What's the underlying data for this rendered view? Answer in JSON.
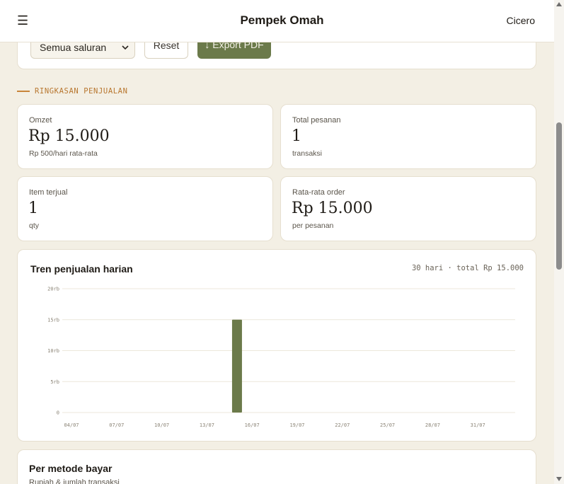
{
  "header": {
    "app_title": "Pempek Omah",
    "user_name": "Cicero",
    "menu_glyph": "☰"
  },
  "filters": {
    "channel_selected": "Semua saluran",
    "reset_label": "Reset",
    "export_label": "↓ Export PDF"
  },
  "summary": {
    "section_label": "RINGKASAN PENJUALAN",
    "stats": [
      {
        "label": "Omzet",
        "value": "Rp 15.000",
        "sub": "Rp 500/hari rata-rata"
      },
      {
        "label": "Total pesanan",
        "value": "1",
        "sub": "transaksi"
      },
      {
        "label": "Item terjual",
        "value": "1",
        "sub": "qty"
      },
      {
        "label": "Rata-rata order",
        "value": "Rp 15.000",
        "sub": "per pesanan"
      }
    ]
  },
  "trend": {
    "title": "Tren penjualan harian",
    "meta": "30 hari · total Rp 15.000"
  },
  "chart_data": {
    "type": "bar",
    "title": "Tren penjualan harian",
    "y_ticks": [
      "0",
      "5rb",
      "10rb",
      "15rb",
      "20rb"
    ],
    "ylim": [
      0,
      20000
    ],
    "x_tick_labels": [
      "04/07",
      "07/07",
      "10/07",
      "13/07",
      "16/07",
      "19/07",
      "22/07",
      "25/07",
      "28/07",
      "31/07"
    ],
    "grid": true,
    "bars": [
      {
        "date": "15/07",
        "value": 15000
      }
    ],
    "bar_color": "#6b7a4a"
  },
  "payment": {
    "title": "Per metode bayar",
    "subtitle": "Rupiah & jumlah transaksi"
  },
  "colors": {
    "accent": "#6b7a4a",
    "section": "#b8762e",
    "background": "#f3efe4"
  }
}
